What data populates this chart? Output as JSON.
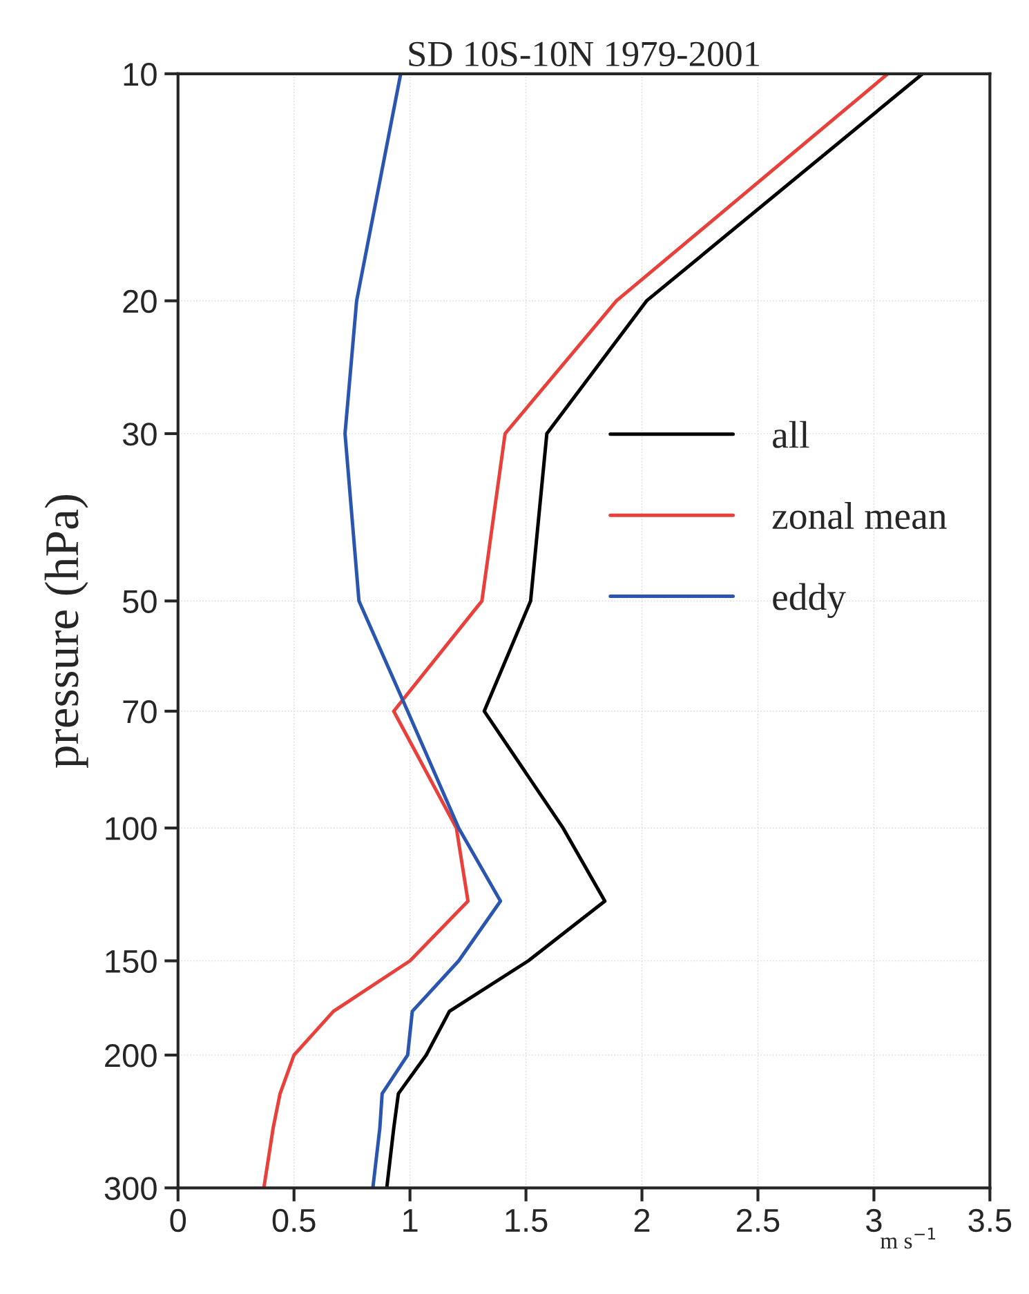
{
  "chart_data": {
    "type": "line",
    "title": "SD 10S-10N 1979-2001",
    "xlabel": "m s$^{−1}$",
    "ylabel": "pressure (hPa)",
    "orientation": "horizontal",
    "x": [
      10,
      20,
      30,
      50,
      70,
      100,
      125,
      150,
      175,
      200,
      225,
      250,
      300
    ],
    "series": [
      {
        "name": "all",
        "color": "#000000",
        "values": [
          3.21,
          2.02,
          1.59,
          1.52,
          1.32,
          1.66,
          1.84,
          1.51,
          1.17,
          1.07,
          0.95,
          0.93,
          0.9
        ]
      },
      {
        "name": "zonal mean",
        "color": "#e8403a",
        "values": [
          3.06,
          1.89,
          1.41,
          1.31,
          0.93,
          1.2,
          1.25,
          1.0,
          0.67,
          0.5,
          0.44,
          0.41,
          0.37
        ]
      },
      {
        "name": "eddy",
        "color": "#2a56b0",
        "values": [
          0.96,
          0.77,
          0.72,
          0.78,
          0.99,
          1.21,
          1.39,
          1.21,
          1.01,
          0.99,
          0.88,
          0.87,
          0.84
        ]
      }
    ],
    "xlim": [
      0,
      3.5
    ],
    "xticks": [
      0,
      0.5,
      1,
      1.5,
      2,
      2.5,
      3,
      3.5
    ],
    "ylim": [
      300,
      10
    ],
    "yticks": [
      10,
      20,
      30,
      50,
      70,
      100,
      150,
      200,
      300
    ],
    "log": "y",
    "grid": true,
    "legend": "right",
    "line_style": "solid",
    "marker": "none"
  }
}
